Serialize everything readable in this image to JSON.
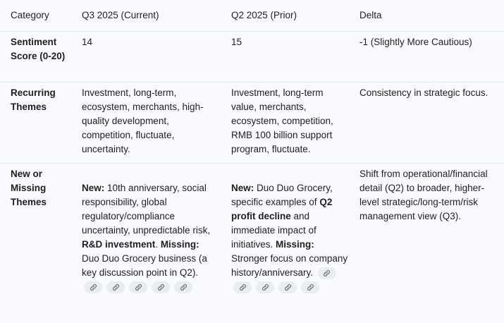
{
  "headers": {
    "category": "Category",
    "current": "Q3 2025 (Current)",
    "prior": "Q2 2025 (Prior)",
    "delta": "Delta"
  },
  "rows": {
    "sentiment": {
      "category": "Sentiment Score (0-20)",
      "current": "14",
      "prior": "15",
      "delta": "-1 (Slightly More Cautious)"
    },
    "recurring": {
      "category": "Recurring Themes",
      "current": "Investment, long-term, ecosystem, merchants, high-quality development, competition, fluctuate, uncertainty.",
      "prior": "Investment, long-term value, merchants, ecosystem, competition, RMB 100 billion support program, fluctuate.",
      "delta": "Consistency in strategic focus."
    },
    "new_missing": {
      "category": "New or Missing Themes",
      "current": {
        "new_label": "New:",
        "new_text": " 10th anniversary, social responsibility, global regulatory/compliance uncertainty, unpredictable risk, ",
        "new_bold": "R&D investment",
        "new_end": ".",
        "missing_label": "Missing:",
        "missing_text": " Duo Duo Grocery business (a key discussion point in Q2)."
      },
      "prior": {
        "new_label": "New:",
        "new_text": " Duo Duo Grocery, specific examples of ",
        "new_bold": "Q2 profit decline",
        "new_text2": " and immediate impact of initiatives. ",
        "missing_label": "Missing:",
        "missing_text": " Stronger focus on company history/anniversary."
      },
      "delta": "Shift from operational/financial detail (Q2) to broader, higher-level strategic/long-term/risk management view (Q3)."
    }
  },
  "citations": {
    "current_count": 5,
    "prior_count": 5,
    "icon": "link-icon"
  }
}
